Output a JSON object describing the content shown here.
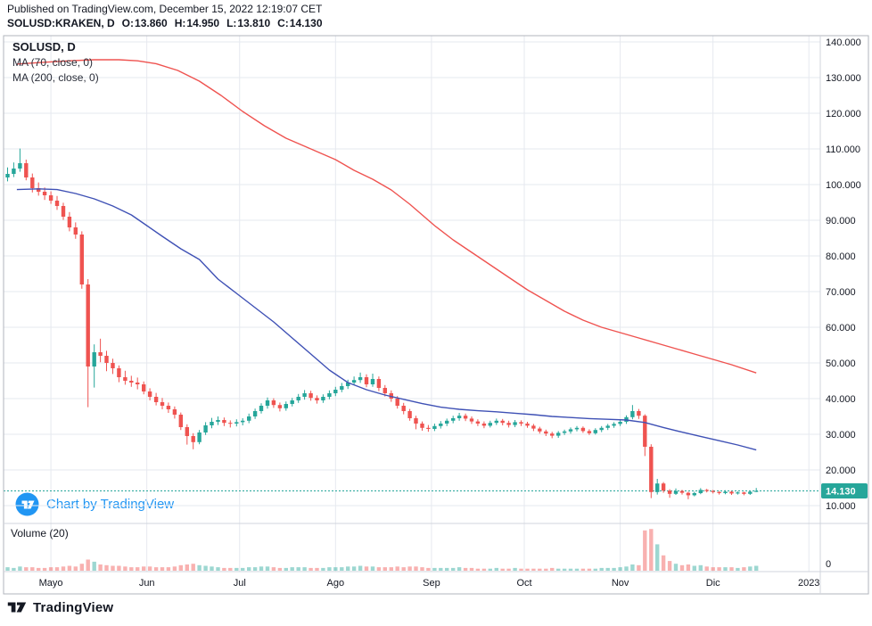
{
  "header": {
    "published_line": "Published on TradingView.com, December 15, 2022 12:19:07 CET",
    "symbol_line": {
      "symbol": "SOLUSD:KRAKEN, D",
      "o_label": "O:",
      "o_value": "13.860",
      "h_label": "H:",
      "h_value": "14.950",
      "l_label": "L:",
      "l_value": "13.810",
      "c_label": "C:",
      "c_value": "14.130"
    }
  },
  "legend": {
    "title": "SOLUSD, D",
    "ma70_label": "MA (70, close, 0)",
    "ma200_label": "MA (200, close, 0)"
  },
  "watermark": {
    "text": "Chart by TradingView"
  },
  "volume_pane": {
    "label": "Volume (20)"
  },
  "footer": {
    "brand": "TradingView"
  },
  "colors": {
    "up": "#26a69a",
    "down": "#ef5350",
    "vol_up": "rgba(38,166,154,0.45)",
    "vol_down": "rgba(239,83,80,0.45)",
    "grid": "#e6e9ef",
    "frame": "#b2b5be",
    "separator": "#d1d4dc",
    "axis_text": "#131722",
    "last_price": "#26a69a",
    "ma70": "#3f51b5",
    "ma200": "#ef5350",
    "watermark_blue": "#2196f3"
  },
  "chart_data": {
    "type": "candlestick",
    "title": "SOLUSD, D",
    "symbol": "SOLUSD",
    "exchange": "KRAKEN",
    "interval": "D",
    "legend_position": "top-left",
    "grid": true,
    "price_axis_range": [
      5.0,
      141.75
    ],
    "price_ticks": [
      {
        "value": 140,
        "label": "140.000"
      },
      {
        "value": 130,
        "label": "130.000"
      },
      {
        "value": 120,
        "label": "120.000"
      },
      {
        "value": 110,
        "label": "110.000"
      },
      {
        "value": 100,
        "label": "100.000"
      },
      {
        "value": 90,
        "label": "90.000"
      },
      {
        "value": 80,
        "label": "80.000"
      },
      {
        "value": 70,
        "label": "70.000"
      },
      {
        "value": 60,
        "label": "60.000"
      },
      {
        "value": 50,
        "label": "50.000"
      },
      {
        "value": 40,
        "label": "40.000"
      },
      {
        "value": 30,
        "label": "30.000"
      },
      {
        "value": 20,
        "label": "20.000"
      },
      {
        "value": 10,
        "label": "10.000"
      }
    ],
    "last_price": {
      "value": 14.13,
      "label": "14.130"
    },
    "ohlc": {
      "open": 13.86,
      "high": 14.95,
      "low": 13.81,
      "close": 14.13
    },
    "volume_axis_zero_label": "0",
    "time_ticks": [
      {
        "day": 14,
        "label": "Mayo"
      },
      {
        "day": 45,
        "label": "Jun"
      },
      {
        "day": 75,
        "label": "Jul"
      },
      {
        "day": 106,
        "label": "Ago"
      },
      {
        "day": 137,
        "label": "Sep"
      },
      {
        "day": 167,
        "label": "Oct"
      },
      {
        "day": 198,
        "label": "Nov"
      },
      {
        "day": 228,
        "label": "Dic"
      },
      {
        "day": 259,
        "label": "2023"
      }
    ],
    "days_per_candle": 2,
    "candles_ohlcv": [
      [
        102,
        104.8,
        100.9,
        103,
        5
      ],
      [
        103,
        106.2,
        102.1,
        104.5,
        4
      ],
      [
        104.5,
        110.1,
        103.6,
        106,
        6
      ],
      [
        106,
        107,
        101.2,
        102,
        5
      ],
      [
        102,
        103.1,
        97.8,
        99,
        5
      ],
      [
        99,
        100.6,
        96.9,
        98,
        4
      ],
      [
        98,
        99.2,
        95.7,
        97,
        4
      ],
      [
        97,
        98.1,
        94.6,
        95.5,
        5
      ],
      [
        95.5,
        96.8,
        92.9,
        94,
        5
      ],
      [
        94,
        94.9,
        90.1,
        91,
        6
      ],
      [
        91,
        92.3,
        86.9,
        88,
        7
      ],
      [
        88,
        89.4,
        84.8,
        86,
        6
      ],
      [
        86,
        86.9,
        70.8,
        72,
        10
      ],
      [
        72,
        73.5,
        37.6,
        49,
        16
      ],
      [
        49,
        55.2,
        43.1,
        53,
        13
      ],
      [
        53,
        56.8,
        50.2,
        52,
        9
      ],
      [
        52,
        53.4,
        47.7,
        50,
        8
      ],
      [
        50,
        51.2,
        46.9,
        48.5,
        7
      ],
      [
        48.5,
        49.3,
        44.6,
        46,
        7
      ],
      [
        46,
        47.8,
        43.9,
        45,
        6
      ],
      [
        45,
        46.4,
        43.3,
        44.5,
        5
      ],
      [
        44.5,
        45.9,
        42.6,
        44,
        5
      ],
      [
        44,
        44.8,
        41.2,
        42,
        6
      ],
      [
        42,
        42.9,
        39.5,
        40.5,
        6
      ],
      [
        40.5,
        41.6,
        38.1,
        39,
        5
      ],
      [
        39,
        40.2,
        37,
        38,
        5
      ],
      [
        38,
        38.9,
        36,
        37,
        5
      ],
      [
        37,
        37.8,
        34.4,
        35.5,
        6
      ],
      [
        35.5,
        36.1,
        31.2,
        32,
        8
      ],
      [
        32,
        32.8,
        27.1,
        29.5,
        9
      ],
      [
        29.5,
        30.3,
        25.8,
        27.8,
        10
      ],
      [
        27.8,
        31.2,
        27.2,
        30.5,
        8
      ],
      [
        30.5,
        33.4,
        29.8,
        32.5,
        7
      ],
      [
        32.5,
        34.6,
        31.7,
        33.5,
        6
      ],
      [
        33.5,
        35,
        32.6,
        34,
        5
      ],
      [
        34,
        34.7,
        32.3,
        33.2,
        4
      ],
      [
        33.2,
        33.9,
        31.9,
        33,
        4
      ],
      [
        33,
        34.2,
        32.2,
        33.4,
        4
      ],
      [
        33.4,
        34.5,
        32.5,
        33.8,
        4
      ],
      [
        33.8,
        35.8,
        33.1,
        35,
        5
      ],
      [
        35,
        37.2,
        34.3,
        36.5,
        5
      ],
      [
        36.5,
        38.7,
        35.8,
        38,
        6
      ],
      [
        38,
        40.3,
        37.2,
        39.5,
        6
      ],
      [
        39.5,
        40.1,
        37.4,
        38.2,
        5
      ],
      [
        38.2,
        38.9,
        36.4,
        37.3,
        4
      ],
      [
        37.3,
        39.2,
        36.6,
        38.5,
        4
      ],
      [
        38.5,
        40.2,
        37.8,
        39.5,
        5
      ],
      [
        39.5,
        41.3,
        38.8,
        40.5,
        5
      ],
      [
        40.5,
        42.4,
        39.7,
        41.5,
        5
      ],
      [
        41.5,
        42.2,
        39.4,
        40.2,
        4
      ],
      [
        40.2,
        40.9,
        38.6,
        39.5,
        4
      ],
      [
        39.5,
        41.2,
        38.8,
        40.5,
        4
      ],
      [
        40.5,
        42.3,
        39.8,
        41.5,
        5
      ],
      [
        41.5,
        43.3,
        40.7,
        42.5,
        5
      ],
      [
        42.5,
        44.4,
        41.8,
        43.5,
        5
      ],
      [
        43.5,
        45.3,
        42.7,
        44.5,
        6
      ],
      [
        44.5,
        46.2,
        43.8,
        45.2,
        6
      ],
      [
        45.2,
        47.3,
        44.4,
        46,
        7
      ],
      [
        46,
        46.8,
        43.2,
        44,
        6
      ],
      [
        44,
        47,
        43.3,
        45.5,
        6
      ],
      [
        45.5,
        46.2,
        42.1,
        43,
        5
      ],
      [
        43,
        43.8,
        40.6,
        41.5,
        5
      ],
      [
        41.5,
        42.3,
        39.1,
        40,
        5
      ],
      [
        40,
        40.7,
        37.2,
        38,
        6
      ],
      [
        38,
        38.8,
        35.6,
        36.5,
        5
      ],
      [
        36.5,
        37.1,
        33.8,
        34.5,
        6
      ],
      [
        34.5,
        35.2,
        31.4,
        33,
        6
      ],
      [
        33,
        33.6,
        31,
        31.8,
        5
      ],
      [
        31.8,
        32.6,
        30.7,
        31.5,
        4
      ],
      [
        31.5,
        33,
        30.9,
        32.3,
        4
      ],
      [
        32.3,
        33.7,
        31.6,
        33,
        4
      ],
      [
        33,
        34.4,
        32.3,
        33.8,
        4
      ],
      [
        33.8,
        35.2,
        33.1,
        34.5,
        4
      ],
      [
        34.5,
        36,
        33.8,
        35.2,
        5
      ],
      [
        35.2,
        35.8,
        33.7,
        34.4,
        4
      ],
      [
        34.4,
        35,
        32.9,
        33.6,
        4
      ],
      [
        33.6,
        34.2,
        32.3,
        33,
        3
      ],
      [
        33,
        33.6,
        31.7,
        32.4,
        3
      ],
      [
        32.4,
        33.8,
        31.9,
        33.2,
        3
      ],
      [
        33.2,
        34.4,
        32.6,
        33.8,
        4
      ],
      [
        33.8,
        34.3,
        32.5,
        33.2,
        3
      ],
      [
        33.2,
        33.8,
        31.9,
        32.6,
        3
      ],
      [
        32.6,
        34,
        32,
        33.4,
        4
      ],
      [
        33.4,
        33.9,
        32.3,
        33,
        3
      ],
      [
        33,
        33.5,
        31.8,
        32.4,
        3
      ],
      [
        32.4,
        32.9,
        30.9,
        31.6,
        3
      ],
      [
        31.6,
        32.1,
        30.2,
        30.8,
        3
      ],
      [
        30.8,
        31.3,
        29.5,
        30.2,
        3
      ],
      [
        30.2,
        30.7,
        28.9,
        29.6,
        4
      ],
      [
        29.6,
        30.9,
        29,
        30.4,
        3
      ],
      [
        30.4,
        31.3,
        29.8,
        30.8,
        3
      ],
      [
        30.8,
        31.9,
        30.2,
        31.4,
        3
      ],
      [
        31.4,
        32.3,
        30.8,
        31.8,
        3
      ],
      [
        31.8,
        32.2,
        30.4,
        30.9,
        3
      ],
      [
        30.9,
        31.4,
        29.8,
        30.3,
        3
      ],
      [
        30.3,
        31.7,
        29.9,
        31.2,
        3
      ],
      [
        31.2,
        32.3,
        30.6,
        31.8,
        4
      ],
      [
        31.8,
        32.9,
        31.2,
        32.4,
        4
      ],
      [
        32.4,
        33.4,
        31.8,
        32.9,
        4
      ],
      [
        32.9,
        34,
        32.3,
        33.5,
        5
      ],
      [
        33.5,
        35.3,
        32.9,
        34.8,
        6
      ],
      [
        34.8,
        38.2,
        34.2,
        36.5,
        9
      ],
      [
        36.5,
        37.1,
        34.3,
        35.2,
        8
      ],
      [
        35.2,
        35.6,
        23.9,
        26.5,
        58
      ],
      [
        26.5,
        27.2,
        12.1,
        13.8,
        60
      ],
      [
        13.8,
        17.5,
        13.1,
        16.2,
        38
      ],
      [
        16.2,
        16.6,
        13.6,
        14.2,
        22
      ],
      [
        14.2,
        14.6,
        12.2,
        13.3,
        14
      ],
      [
        13.3,
        14.8,
        13,
        14.1,
        10
      ],
      [
        14.1,
        14.4,
        13.1,
        13.6,
        8
      ],
      [
        13.6,
        13.9,
        11.8,
        12.9,
        9
      ],
      [
        12.9,
        13.9,
        12.6,
        13.5,
        7
      ],
      [
        13.5,
        14.9,
        13.2,
        14.4,
        8
      ],
      [
        14.4,
        14.7,
        13.7,
        14.1,
        6
      ],
      [
        14.1,
        14.4,
        13.4,
        13.8,
        5
      ],
      [
        13.8,
        14.1,
        13.1,
        13.5,
        5
      ],
      [
        13.5,
        14.3,
        13.2,
        13.9,
        5
      ],
      [
        13.9,
        14.1,
        13,
        13.4,
        5
      ],
      [
        13.4,
        14,
        13.1,
        13.7,
        4
      ],
      [
        13.7,
        13.9,
        12.9,
        13.3,
        5
      ],
      [
        13.3,
        14.2,
        13,
        13.9,
        6
      ],
      [
        13.86,
        14.95,
        13.81,
        14.13,
        7
      ]
    ],
    "moving_averages": [
      {
        "name": "MA 70 close",
        "color": "#3f51b5",
        "points": [
          [
            3,
            98.6
          ],
          [
            10,
            98.8
          ],
          [
            16,
            98.6
          ],
          [
            22,
            97.5
          ],
          [
            28,
            96
          ],
          [
            34,
            94
          ],
          [
            40,
            91.5
          ],
          [
            45,
            88.5
          ],
          [
            50,
            85.5
          ],
          [
            56,
            82
          ],
          [
            62,
            79
          ],
          [
            68,
            73.5
          ],
          [
            74,
            69.5
          ],
          [
            80,
            65.5
          ],
          [
            86,
            61.5
          ],
          [
            92,
            57
          ],
          [
            98,
            52.5
          ],
          [
            104,
            48
          ],
          [
            110,
            44.5
          ],
          [
            116,
            42.5
          ],
          [
            122,
            41
          ],
          [
            128,
            39.8
          ],
          [
            134,
            38.6
          ],
          [
            140,
            37.6
          ],
          [
            146,
            37
          ],
          [
            152,
            36.6
          ],
          [
            158,
            36.3
          ],
          [
            164,
            35.9
          ],
          [
            170,
            35.5
          ],
          [
            176,
            35
          ],
          [
            182,
            34.7
          ],
          [
            188,
            34.4
          ],
          [
            194,
            34.2
          ],
          [
            200,
            34
          ],
          [
            206,
            33.3
          ],
          [
            212,
            31.9
          ],
          [
            218,
            30.6
          ],
          [
            224,
            29.4
          ],
          [
            230,
            28.2
          ],
          [
            236,
            27
          ],
          [
            242,
            25.6
          ]
        ]
      },
      {
        "name": "MA 200 close",
        "color": "#ef5350",
        "points": [
          [
            3,
            133.8
          ],
          [
            12,
            134.3
          ],
          [
            20,
            134.7
          ],
          [
            28,
            135
          ],
          [
            36,
            135
          ],
          [
            42,
            134.7
          ],
          [
            48,
            133.9
          ],
          [
            55,
            132
          ],
          [
            62,
            129
          ],
          [
            69,
            125
          ],
          [
            76,
            120.5
          ],
          [
            83,
            116.5
          ],
          [
            90,
            113
          ],
          [
            98,
            110
          ],
          [
            106,
            107
          ],
          [
            112,
            104
          ],
          [
            118,
            101.5
          ],
          [
            124,
            98.5
          ],
          [
            130,
            94.5
          ],
          [
            138,
            88.5
          ],
          [
            144,
            84.5
          ],
          [
            150,
            81
          ],
          [
            156,
            77.5
          ],
          [
            162,
            74
          ],
          [
            168,
            70.5
          ],
          [
            174,
            67.5
          ],
          [
            180,
            64.5
          ],
          [
            186,
            62
          ],
          [
            192,
            60
          ],
          [
            198,
            58.5
          ],
          [
            204,
            57
          ],
          [
            210,
            55.5
          ],
          [
            216,
            54
          ],
          [
            222,
            52.5
          ],
          [
            228,
            51
          ],
          [
            234,
            49.5
          ],
          [
            242,
            47.2
          ]
        ]
      }
    ]
  }
}
